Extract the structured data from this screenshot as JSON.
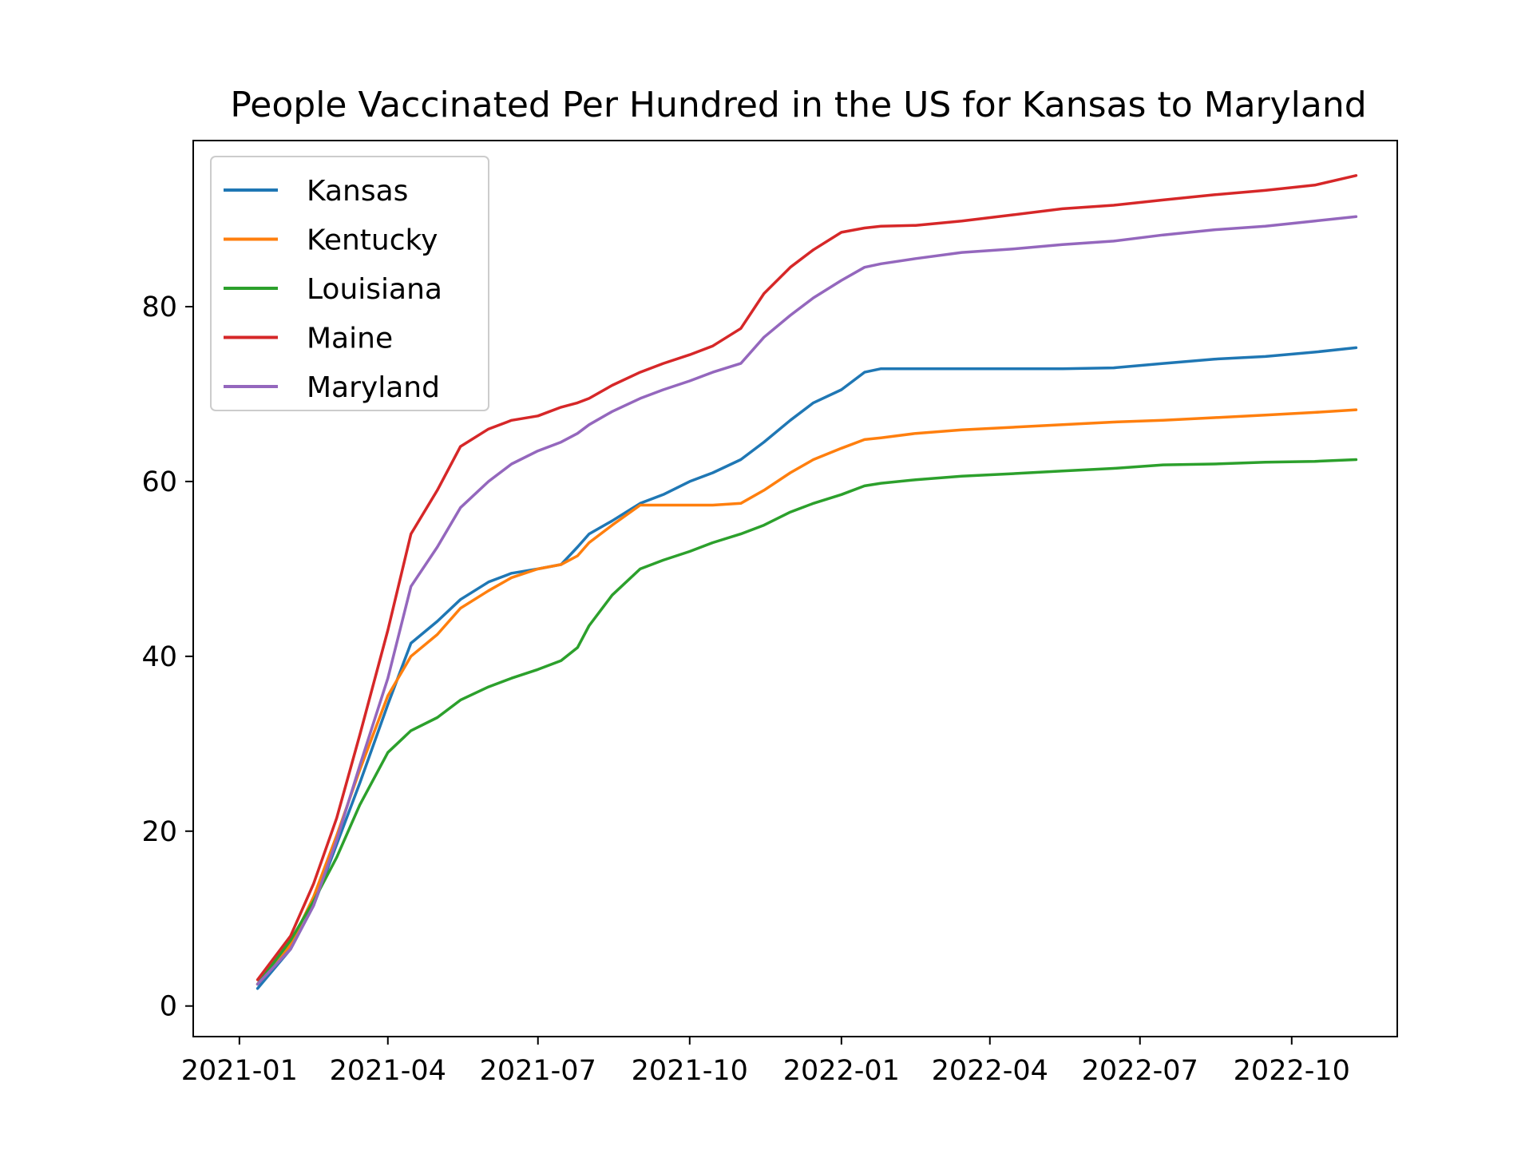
{
  "chart_data": {
    "type": "line",
    "title": "People Vaccinated Per Hundred in the US for Kansas to Maryland",
    "xlabel": "",
    "ylabel": "",
    "x_axis": "date",
    "xlim": [
      "2020-12-04",
      "2022-12-04"
    ],
    "ylim": [
      -3.5,
      99
    ],
    "grid": false,
    "legend_position": "top-left",
    "x_ticks": [
      "2021-01",
      "2021-04",
      "2021-07",
      "2021-10",
      "2022-01",
      "2022-04",
      "2022-07",
      "2022-10"
    ],
    "y_ticks": [
      0,
      20,
      40,
      60,
      80
    ],
    "x": [
      "2021-01-12",
      "2021-02-01",
      "2021-02-15",
      "2021-03-01",
      "2021-03-15",
      "2021-04-01",
      "2021-04-15",
      "2021-05-01",
      "2021-05-15",
      "2021-06-01",
      "2021-06-15",
      "2021-07-01",
      "2021-07-15",
      "2021-07-25",
      "2021-08-01",
      "2021-08-15",
      "2021-09-01",
      "2021-09-15",
      "2021-10-01",
      "2021-10-15",
      "2021-11-01",
      "2021-11-15",
      "2021-12-01",
      "2021-12-15",
      "2022-01-01",
      "2022-01-15",
      "2022-01-25",
      "2022-02-15",
      "2022-03-15",
      "2022-04-15",
      "2022-05-15",
      "2022-06-15",
      "2022-07-15",
      "2022-08-15",
      "2022-09-15",
      "2022-10-15",
      "2022-11-09"
    ],
    "series": [
      {
        "name": "Kansas",
        "color": "#1f77b4",
        "values": [
          2.0,
          6.5,
          11.5,
          18.5,
          25.5,
          34.5,
          41.5,
          44.0,
          46.5,
          48.5,
          49.5,
          50.0,
          50.5,
          52.5,
          54.0,
          55.5,
          57.5,
          58.5,
          60.0,
          61.0,
          62.5,
          64.5,
          67.0,
          69.0,
          70.5,
          72.5,
          72.9,
          72.9,
          72.9,
          72.9,
          72.9,
          73.0,
          73.5,
          74.0,
          74.3,
          74.8,
          75.3
        ]
      },
      {
        "name": "Kentucky",
        "color": "#ff7f0e",
        "values": [
          2.5,
          7.0,
          12.5,
          19.5,
          27.0,
          35.5,
          40.0,
          42.5,
          45.5,
          47.5,
          49.0,
          50.0,
          50.5,
          51.5,
          53.0,
          55.0,
          57.3,
          57.3,
          57.3,
          57.3,
          57.5,
          59.0,
          61.0,
          62.5,
          63.8,
          64.8,
          65.0,
          65.5,
          65.9,
          66.2,
          66.5,
          66.8,
          67.0,
          67.3,
          67.6,
          67.9,
          68.2
        ]
      },
      {
        "name": "Louisiana",
        "color": "#2ca02c",
        "values": [
          2.5,
          7.5,
          12.0,
          17.0,
          23.0,
          29.0,
          31.5,
          33.0,
          35.0,
          36.5,
          37.5,
          38.5,
          39.5,
          41.0,
          43.5,
          47.0,
          50.0,
          51.0,
          52.0,
          53.0,
          54.0,
          55.0,
          56.5,
          57.5,
          58.5,
          59.5,
          59.8,
          60.2,
          60.6,
          60.9,
          61.2,
          61.5,
          61.9,
          62.0,
          62.2,
          62.3,
          62.5
        ]
      },
      {
        "name": "Maine",
        "color": "#d62728",
        "values": [
          3.0,
          8.0,
          14.0,
          21.5,
          31.0,
          43.0,
          54.0,
          59.0,
          64.0,
          66.0,
          67.0,
          67.5,
          68.5,
          69.0,
          69.5,
          71.0,
          72.5,
          73.5,
          74.5,
          75.5,
          77.5,
          81.5,
          84.5,
          86.5,
          88.5,
          89.0,
          89.2,
          89.3,
          89.8,
          90.5,
          91.2,
          91.6,
          92.2,
          92.8,
          93.3,
          93.9,
          95.0
        ]
      },
      {
        "name": "Maryland",
        "color": "#9467bd",
        "values": [
          2.5,
          6.5,
          11.5,
          19.0,
          27.5,
          37.5,
          48.0,
          52.5,
          57.0,
          60.0,
          62.0,
          63.5,
          64.5,
          65.5,
          66.5,
          68.0,
          69.5,
          70.5,
          71.5,
          72.5,
          73.5,
          76.5,
          79.0,
          81.0,
          83.0,
          84.5,
          84.9,
          85.5,
          86.2,
          86.6,
          87.1,
          87.5,
          88.2,
          88.8,
          89.2,
          89.8,
          90.3
        ]
      }
    ]
  }
}
